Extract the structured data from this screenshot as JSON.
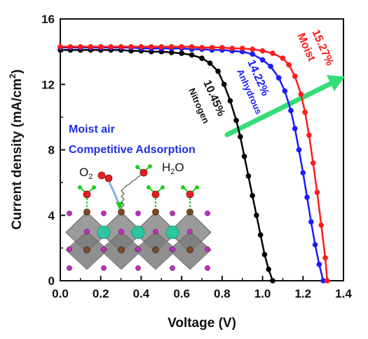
{
  "chart_data": {
    "type": "line",
    "xlabel": "Voltage (V)",
    "ylabel": "Current density (mA/cm",
    "ylabel_sup": "2",
    "ylabel_close": ")",
    "xlim": [
      0.0,
      1.4
    ],
    "ylim": [
      0,
      16
    ],
    "xticks": [
      "0.0",
      "0.2",
      "0.4",
      "0.6",
      "0.8",
      "1.0",
      "1.2",
      "1.4"
    ],
    "yticks": [
      "0",
      "4",
      "8",
      "12",
      "16"
    ],
    "grid": false,
    "series": [
      {
        "name": "Nitrogen",
        "efficiency": "10.45%",
        "color": "#000000",
        "x": [
          0.0,
          0.05,
          0.1,
          0.15,
          0.2,
          0.25,
          0.3,
          0.35,
          0.4,
          0.45,
          0.5,
          0.55,
          0.6,
          0.65,
          0.7,
          0.74,
          0.78,
          0.81,
          0.84,
          0.87,
          0.89,
          0.91,
          0.93,
          0.95,
          0.97,
          0.99,
          1.01,
          1.03,
          1.05
        ],
        "y": [
          14.1,
          14.1,
          14.1,
          14.1,
          14.1,
          14.1,
          14.1,
          14.05,
          14.05,
          14.0,
          14.0,
          13.95,
          13.9,
          13.8,
          13.6,
          13.3,
          12.8,
          12.0,
          11.0,
          9.8,
          8.8,
          7.6,
          6.4,
          5.2,
          4.0,
          2.8,
          1.6,
          0.7,
          0.0
        ]
      },
      {
        "name": "Anhydrous",
        "efficiency": "14.22%",
        "color": "#1a1aff",
        "x": [
          0.0,
          0.05,
          0.1,
          0.15,
          0.2,
          0.25,
          0.3,
          0.35,
          0.4,
          0.45,
          0.5,
          0.55,
          0.6,
          0.65,
          0.7,
          0.75,
          0.8,
          0.85,
          0.9,
          0.95,
          1.0,
          1.04,
          1.08,
          1.11,
          1.14,
          1.16,
          1.18,
          1.2,
          1.22,
          1.24,
          1.26,
          1.28,
          1.3
        ],
        "y": [
          14.25,
          14.25,
          14.25,
          14.25,
          14.25,
          14.25,
          14.25,
          14.25,
          14.2,
          14.2,
          14.2,
          14.2,
          14.2,
          14.15,
          14.15,
          14.1,
          14.1,
          14.05,
          14.0,
          13.85,
          13.5,
          13.1,
          12.4,
          11.6,
          10.4,
          9.3,
          8.0,
          6.6,
          5.1,
          3.6,
          2.2,
          1.0,
          0.0
        ]
      },
      {
        "name": "Moist",
        "efficiency": "15.27%",
        "color": "#ff1a1a",
        "x": [
          0.0,
          0.05,
          0.1,
          0.15,
          0.2,
          0.25,
          0.3,
          0.35,
          0.4,
          0.45,
          0.5,
          0.55,
          0.6,
          0.65,
          0.7,
          0.75,
          0.8,
          0.85,
          0.9,
          0.95,
          1.0,
          1.05,
          1.1,
          1.13,
          1.16,
          1.19,
          1.21,
          1.23,
          1.25,
          1.27,
          1.29,
          1.31,
          1.32
        ],
        "y": [
          14.3,
          14.3,
          14.3,
          14.3,
          14.3,
          14.3,
          14.3,
          14.3,
          14.3,
          14.3,
          14.3,
          14.3,
          14.3,
          14.3,
          14.25,
          14.25,
          14.25,
          14.2,
          14.2,
          14.15,
          14.05,
          13.9,
          13.6,
          13.2,
          12.5,
          11.4,
          10.3,
          8.9,
          7.2,
          5.4,
          3.4,
          1.4,
          0.0
        ]
      }
    ]
  },
  "annotation": {
    "line1": "Moist air",
    "line2": "Competitive Adsorption",
    "o2_label": "O",
    "o2_sub": "2",
    "h2o_label": "H",
    "h2o_sub": "2",
    "h2o_tail": "O"
  },
  "colors": {
    "trend_arrow": "#33dd77",
    "annotation_text": "#1f2fe0",
    "octahedron": "#8a8a8a",
    "a_site": "#2cc7a0",
    "halide": "#c030c0",
    "b_site": "#7a4a2a",
    "oxygen": "#e02020",
    "hydrogen": "#22cc22"
  }
}
